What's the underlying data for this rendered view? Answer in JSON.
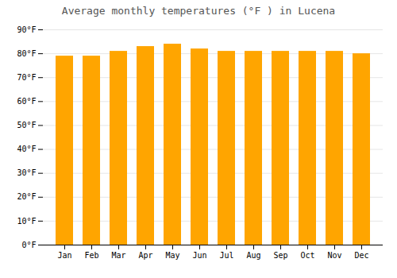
{
  "chart_data": {
    "type": "bar",
    "title": "Average monthly temperatures (°F ) in Lucena",
    "categories": [
      "Jan",
      "Feb",
      "Mar",
      "Apr",
      "May",
      "Jun",
      "Jul",
      "Aug",
      "Sep",
      "Oct",
      "Nov",
      "Dec"
    ],
    "values": [
      79,
      79,
      81,
      83,
      84,
      82,
      81,
      81,
      81,
      81,
      81,
      80
    ],
    "color": "#FFA500",
    "ylim": [
      0,
      90
    ],
    "yticks": [
      {
        "value": 0,
        "label": "0°F"
      },
      {
        "value": 10,
        "label": "10°F"
      },
      {
        "value": 20,
        "label": "20°F"
      },
      {
        "value": 30,
        "label": "30°F"
      },
      {
        "value": 40,
        "label": "40°F"
      },
      {
        "value": 50,
        "label": "50°F"
      },
      {
        "value": 60,
        "label": "60°F"
      },
      {
        "value": 70,
        "label": "70°F"
      },
      {
        "value": 80,
        "label": "80°F"
      },
      {
        "value": 90,
        "label": "90°F"
      }
    ],
    "grid": true
  }
}
